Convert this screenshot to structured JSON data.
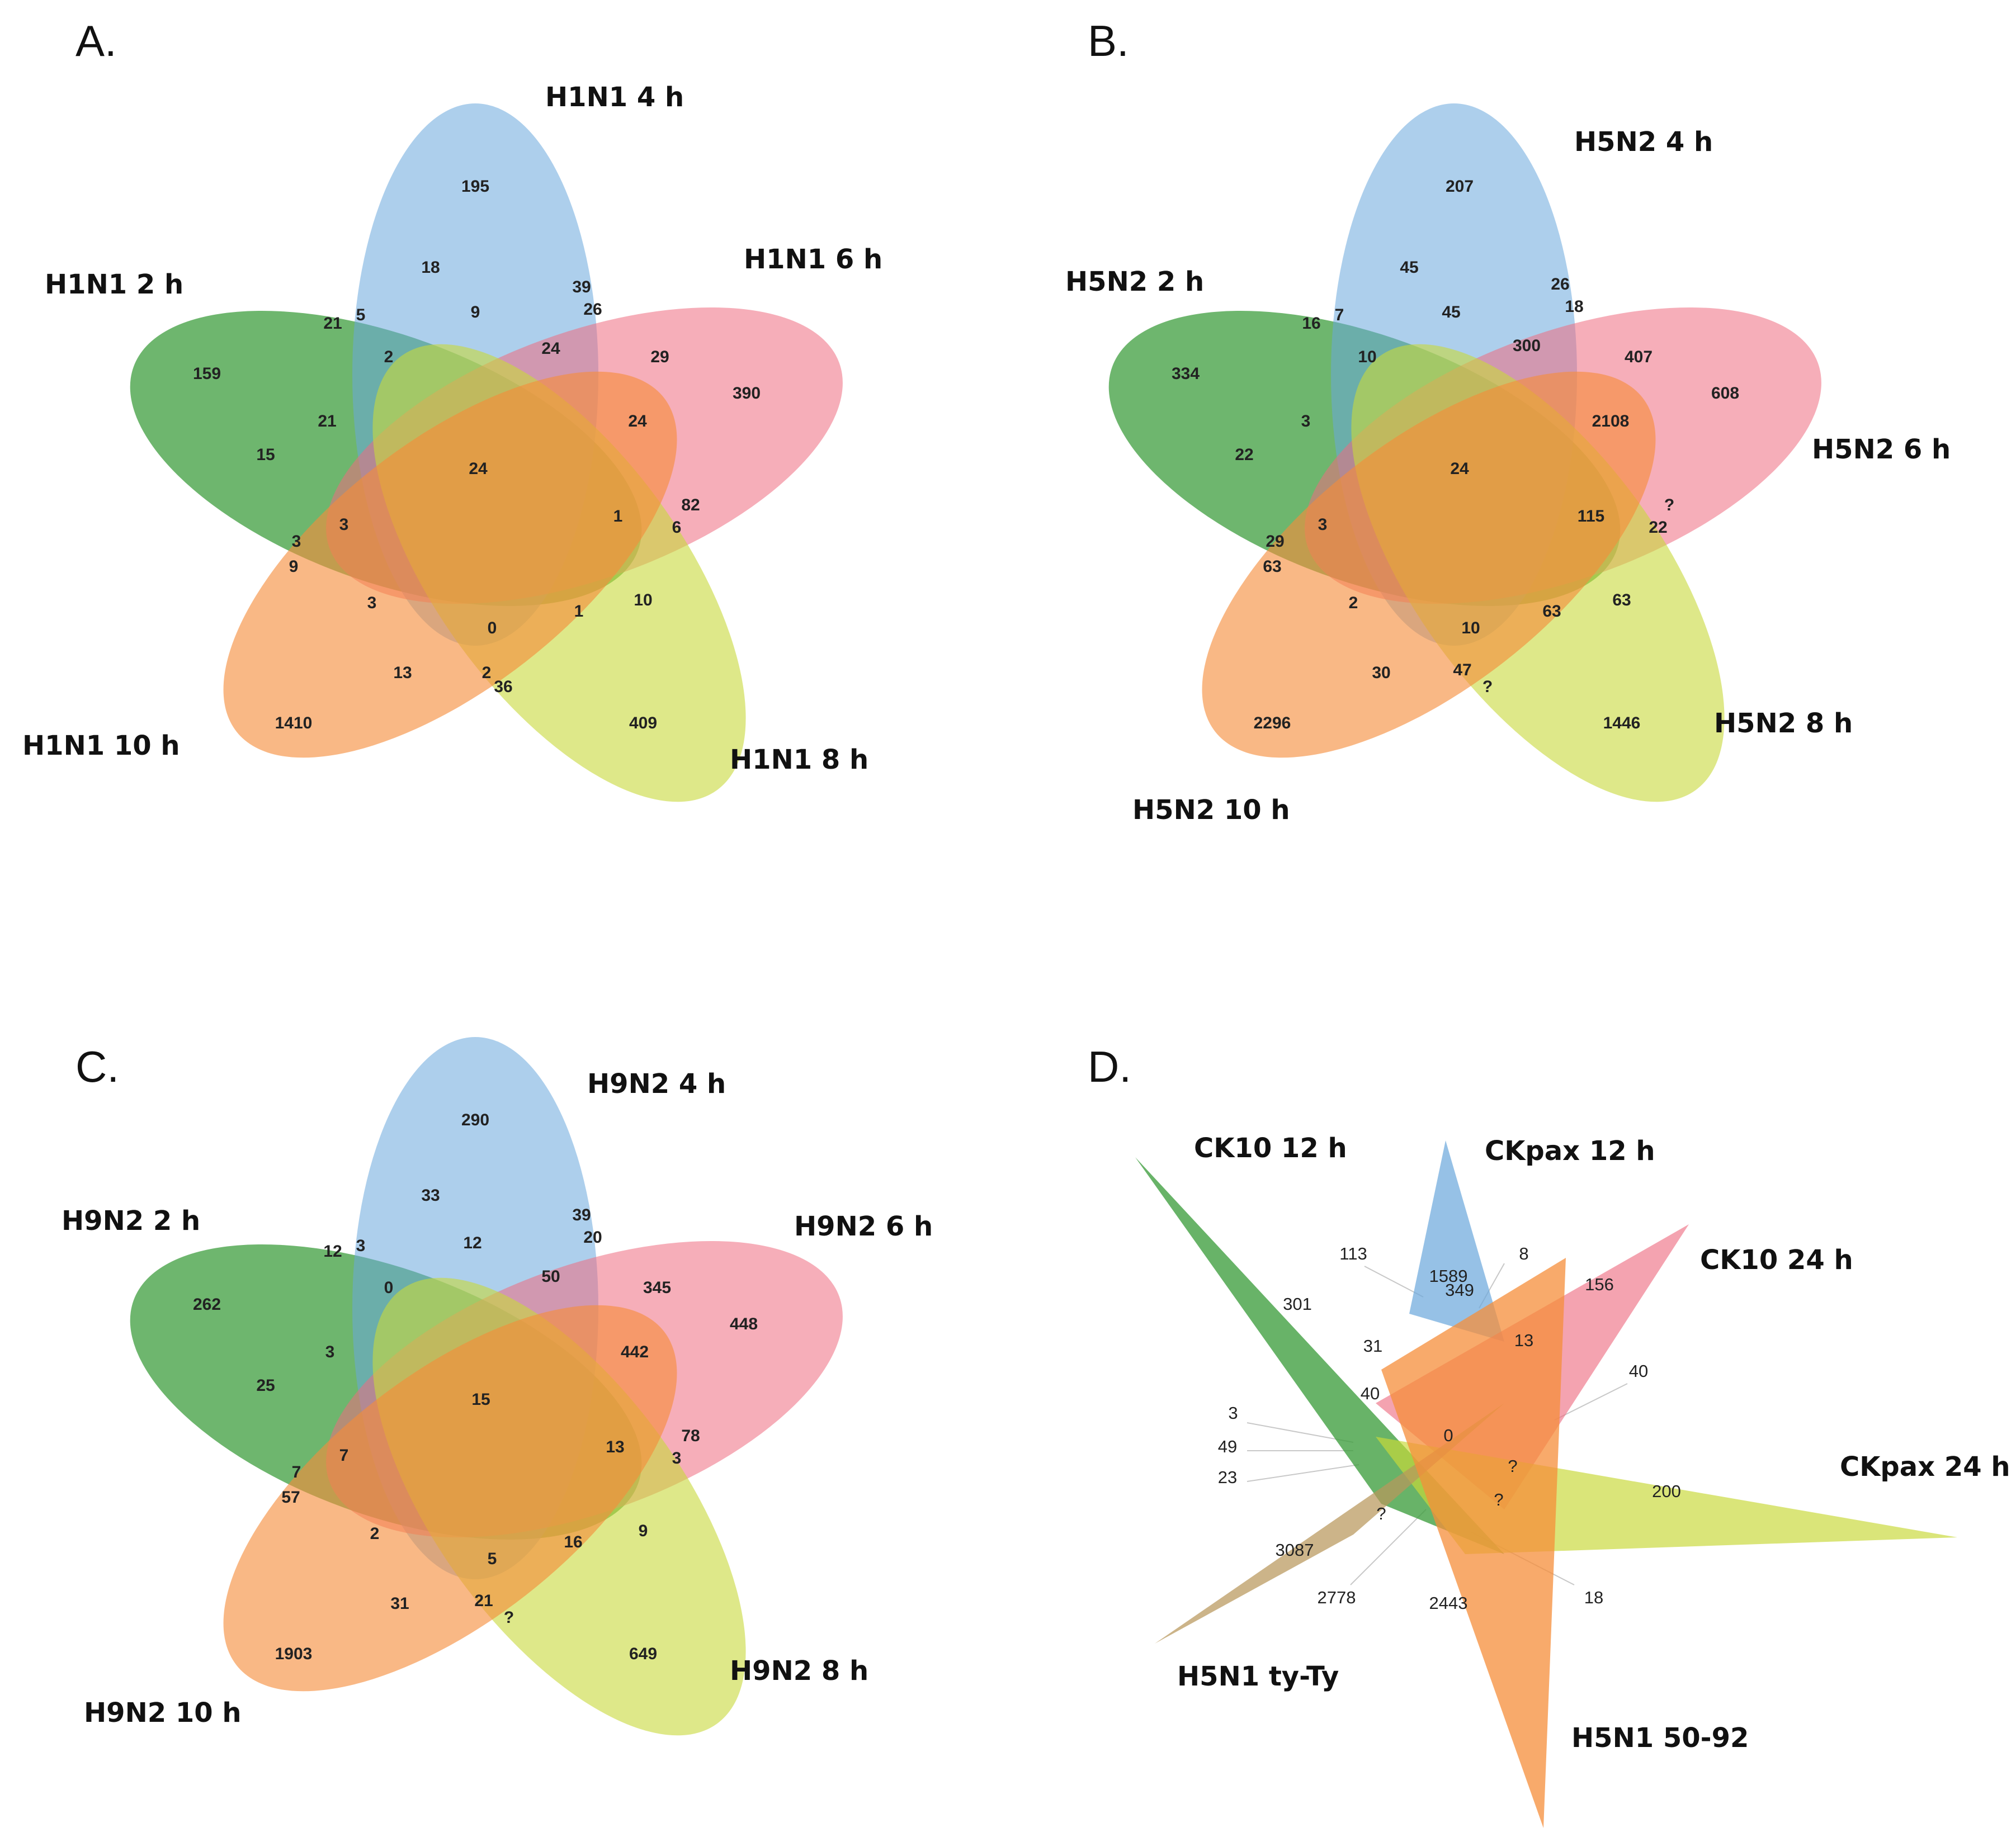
{
  "colors": {
    "green": "#3e9e3e",
    "blue": "#6aa7dc",
    "pink": "#ee6b80",
    "yellow": "#c8d83a",
    "orange": "#f58d3a",
    "tan": "#b9975b"
  },
  "panels": [
    {
      "letter": "A.",
      "sets": [
        "H1N1 4 h",
        "H1N1 6 h",
        "H1N1 8 h",
        "H1N1 10 h",
        "H1N1 2 h"
      ],
      "regions": [
        "195",
        "390",
        "409",
        "1410",
        "159",
        "18",
        "39",
        "26",
        "24",
        "29",
        "9",
        "2",
        "5",
        "21",
        "21",
        "15",
        "3",
        "3",
        "24",
        "24",
        "1",
        "82",
        "6",
        "10",
        "1",
        "0",
        "3",
        "9",
        "13",
        "2",
        "36"
      ]
    },
    {
      "letter": "B.",
      "sets": [
        "H5N2 4 h",
        "H5N2 6 h",
        "H5N2 8 h",
        "H5N2 10 h",
        "H5N2 2 h"
      ],
      "regions": [
        "207",
        "608",
        "1446",
        "2296",
        "334",
        "45",
        "26",
        "18",
        "300",
        "407",
        "45",
        "10",
        "7",
        "16",
        "3",
        "22",
        "29",
        "3",
        "2108",
        "24",
        "115",
        "?",
        "22",
        "63",
        "63",
        "10",
        "2",
        "63",
        "30",
        "47",
        "?"
      ]
    },
    {
      "letter": "C.",
      "sets": [
        "H9N2 4 h",
        "H9N2 6 h",
        "H9N2 8 h",
        "H9N2 10 h",
        "H9N2 2 h"
      ],
      "regions": [
        "290",
        "448",
        "649",
        "1903",
        "262",
        "33",
        "39",
        "20",
        "50",
        "345",
        "12",
        "0",
        "3",
        "12",
        "3",
        "25",
        "7",
        "7",
        "442",
        "15",
        "13",
        "78",
        "3",
        "9",
        "16",
        "5",
        "2",
        "57",
        "31",
        "21",
        "?"
      ]
    },
    {
      "letter": "D.",
      "sets": [
        "CK10 12 h",
        "CKpax 12 h",
        "CK10 24 h",
        "CKpax 24 h",
        "H5N1 ty-Ty",
        "H5N1 50-92"
      ],
      "regions": [
        "113",
        "1589",
        "8",
        "301",
        "349",
        "156",
        "31",
        "13",
        "40",
        "40",
        "0",
        "3",
        "49",
        "23",
        "?",
        "?",
        "200",
        "3087",
        "?",
        "2778",
        "2443",
        "18"
      ]
    }
  ]
}
